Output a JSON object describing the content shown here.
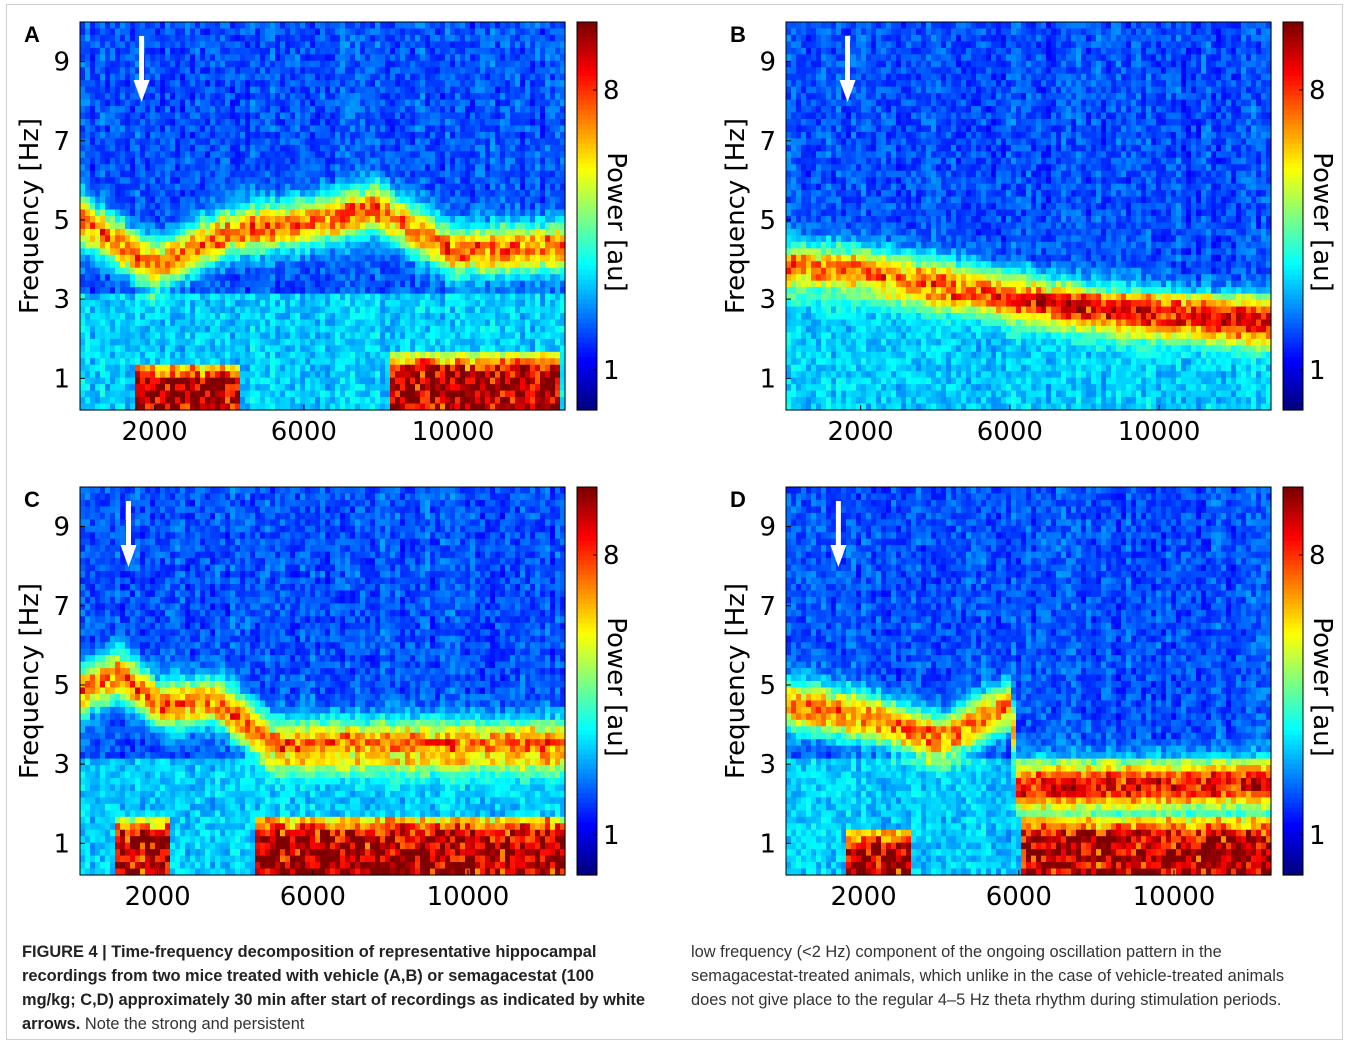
{
  "figure": {
    "caption_bold": "FIGURE 4 | Time-frequency decomposition of representative hippocampal recordings from two mice treated with vehicle (A,B) or semagacestat (100 mg/kg; C,D) approximately 30 min after start of recordings as indicated by white arrows.",
    "caption_left_rest": " Note the strong and persistent",
    "caption_right": "low frequency (<2 Hz) component of the ongoing oscillation pattern in the semagacestat-treated animals, which unlike in the case of vehicle-treated animals does not give place to the regular 4–5 Hz theta rhythm during stimulation periods."
  },
  "chart_data": [
    {
      "type": "heatmap",
      "panel": "A",
      "ylabel": "Frequency [Hz]",
      "colorbar_label": "Power [au]",
      "colorscale": "jet",
      "xlim": [
        0,
        13000
      ],
      "ylim": [
        0.2,
        10
      ],
      "x_ticks": [
        2000,
        6000,
        10000
      ],
      "y_ticks": [
        1,
        3,
        5,
        7,
        9
      ],
      "colorbar_ticks": [
        1,
        8
      ],
      "colorbar_range": [
        0,
        9.7
      ],
      "arrow_x": 1650,
      "dominant_band": [
        {
          "x": 0,
          "freq": 5.0
        },
        {
          "x": 2000,
          "freq": 3.8
        },
        {
          "x": 4000,
          "freq": 4.7
        },
        {
          "x": 6000,
          "freq": 4.9
        },
        {
          "x": 8000,
          "freq": 5.3
        },
        {
          "x": 10000,
          "freq": 4.2
        },
        {
          "x": 13000,
          "freq": 4.3
        }
      ],
      "low_freq_bursts": [
        [
          1500,
          4300,
          0.8
        ],
        [
          8300,
          12800,
          1.0
        ]
      ]
    },
    {
      "type": "heatmap",
      "panel": "B",
      "ylabel": "Frequency [Hz]",
      "colorbar_label": "Power [au]",
      "colorscale": "jet",
      "xlim": [
        0,
        13000
      ],
      "ylim": [
        0.2,
        10
      ],
      "x_ticks": [
        2000,
        6000,
        10000
      ],
      "y_ticks": [
        1,
        3,
        5,
        7,
        9
      ],
      "colorbar_ticks": [
        1,
        8
      ],
      "colorbar_range": [
        0,
        9.7
      ],
      "arrow_x": 1650,
      "dominant_band": [
        {
          "x": 0,
          "freq": 3.8
        },
        {
          "x": 2000,
          "freq": 3.7
        },
        {
          "x": 4000,
          "freq": 3.4
        },
        {
          "x": 6000,
          "freq": 3.1
        },
        {
          "x": 8000,
          "freq": 2.8
        },
        {
          "x": 10000,
          "freq": 2.6
        },
        {
          "x": 13000,
          "freq": 2.4
        }
      ],
      "low_freq_bursts": []
    },
    {
      "type": "heatmap",
      "panel": "C",
      "ylabel": "Frequency [Hz]",
      "colorbar_label": "Power [au]",
      "colorscale": "jet",
      "xlim": [
        0,
        12500
      ],
      "ylim": [
        0.2,
        10
      ],
      "x_ticks": [
        2000,
        6000,
        10000
      ],
      "y_ticks": [
        1,
        3,
        5,
        7,
        9
      ],
      "colorbar_ticks": [
        1,
        8
      ],
      "colorbar_range": [
        0,
        9.7
      ],
      "arrow_x": 1250,
      "dominant_band": [
        {
          "x": 0,
          "freq": 4.8
        },
        {
          "x": 1000,
          "freq": 5.3
        },
        {
          "x": 2000,
          "freq": 4.5
        },
        {
          "x": 3500,
          "freq": 4.6
        },
        {
          "x": 5000,
          "freq": 3.5
        }
      ],
      "low_freq_bursts": [
        [
          900,
          2300,
          1.0
        ],
        [
          4500,
          12500,
          1.1
        ]
      ]
    },
    {
      "type": "heatmap",
      "panel": "D",
      "ylabel": "Frequency [Hz]",
      "colorbar_label": "Power [au]",
      "colorscale": "jet",
      "xlim": [
        0,
        12500
      ],
      "ylim": [
        0.2,
        10
      ],
      "x_ticks": [
        2000,
        6000,
        10000
      ],
      "y_ticks": [
        1,
        3,
        5,
        7,
        9
      ],
      "colorbar_ticks": [
        1,
        8
      ],
      "colorbar_range": [
        0,
        9.7
      ],
      "arrow_x": 1350,
      "dominant_band": [
        {
          "x": 0,
          "freq": 4.5
        },
        {
          "x": 2000,
          "freq": 4.2
        },
        {
          "x": 4000,
          "freq": 3.6
        },
        {
          "x": 5800,
          "freq": 4.5
        },
        {
          "x": 6000,
          "freq": 2.4
        },
        {
          "x": 12500,
          "freq": 2.5
        }
      ],
      "low_freq_bursts": [
        [
          1500,
          3200,
          0.8
        ],
        [
          6000,
          12500,
          1.0
        ]
      ]
    }
  ]
}
